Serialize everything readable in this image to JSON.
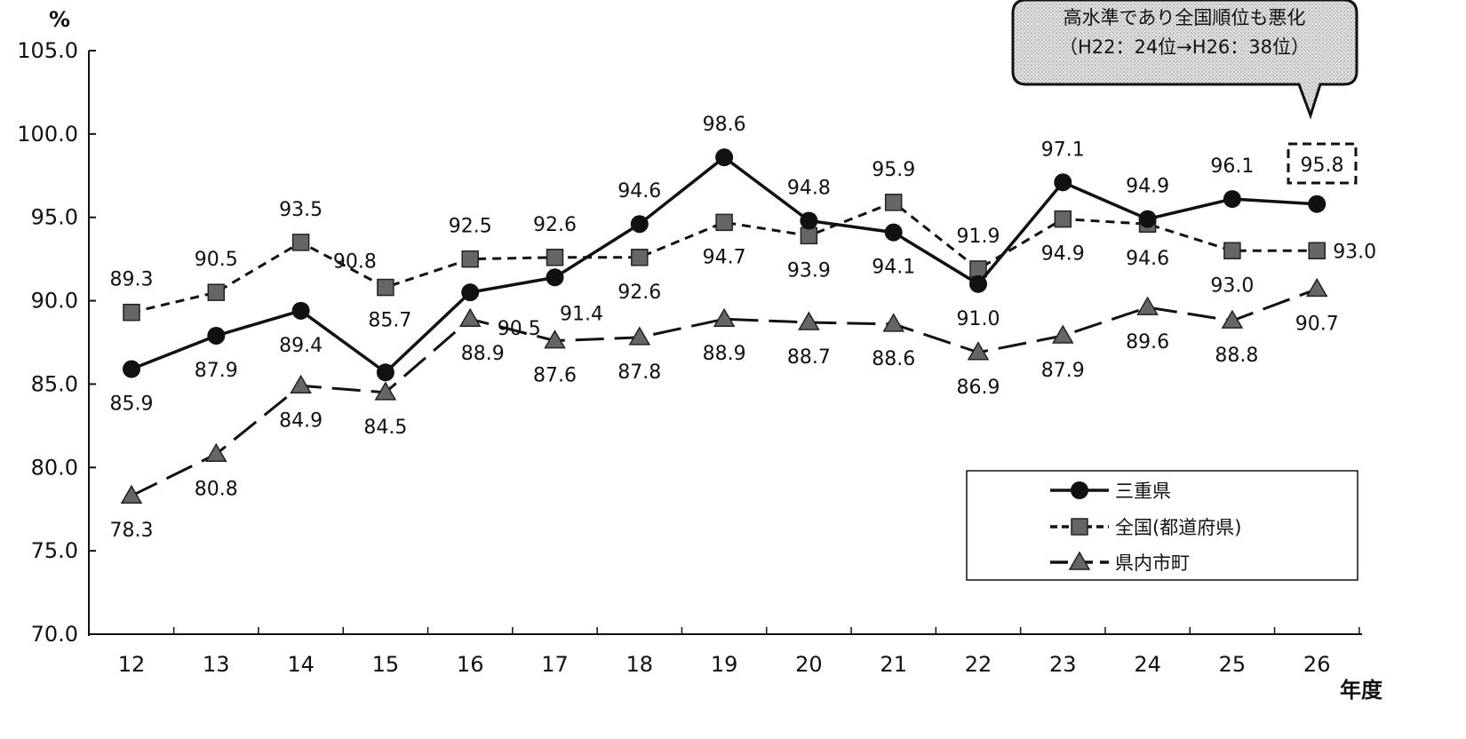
{
  "chart_data": {
    "type": "line",
    "title": "",
    "xlabel": "年度",
    "ylabel": "%",
    "x": [
      "12",
      "13",
      "14",
      "15",
      "16",
      "17",
      "18",
      "19",
      "20",
      "21",
      "22",
      "23",
      "24",
      "25",
      "26"
    ],
    "ylim": [
      70.0,
      105.0
    ],
    "yticks": [
      "70.0",
      "75.0",
      "80.0",
      "85.0",
      "90.0",
      "95.0",
      "100.0",
      "105.0"
    ],
    "grid": false,
    "legend_position": "bottom-right",
    "series": [
      {
        "name": "三重県",
        "values": [
          85.9,
          87.9,
          89.4,
          85.7,
          90.5,
          91.4,
          94.6,
          98.6,
          94.8,
          94.1,
          91.0,
          97.1,
          94.9,
          96.1,
          95.8
        ],
        "color": "#111111",
        "line": "solid",
        "marker": "circle"
      },
      {
        "name": "全国(都道府県)",
        "values": [
          89.3,
          90.5,
          93.5,
          90.8,
          92.5,
          92.6,
          92.6,
          94.7,
          93.9,
          95.9,
          91.9,
          94.9,
          94.6,
          93.0,
          93.0
        ],
        "color": "#111111",
        "line": "dashed",
        "marker": "square"
      },
      {
        "name": "県内市町",
        "values": [
          78.3,
          80.8,
          84.9,
          84.5,
          88.9,
          87.6,
          87.8,
          88.9,
          88.7,
          88.6,
          86.9,
          87.9,
          89.6,
          88.8,
          90.7
        ],
        "color": "#111111",
        "line": "long-dashed",
        "marker": "triangle"
      }
    ],
    "annotations": {
      "callout_line1": "高水準であり全国順位も悪化",
      "callout_line2": "（H22：24位→H26：38位）",
      "highlighted_label": "95.8"
    }
  }
}
